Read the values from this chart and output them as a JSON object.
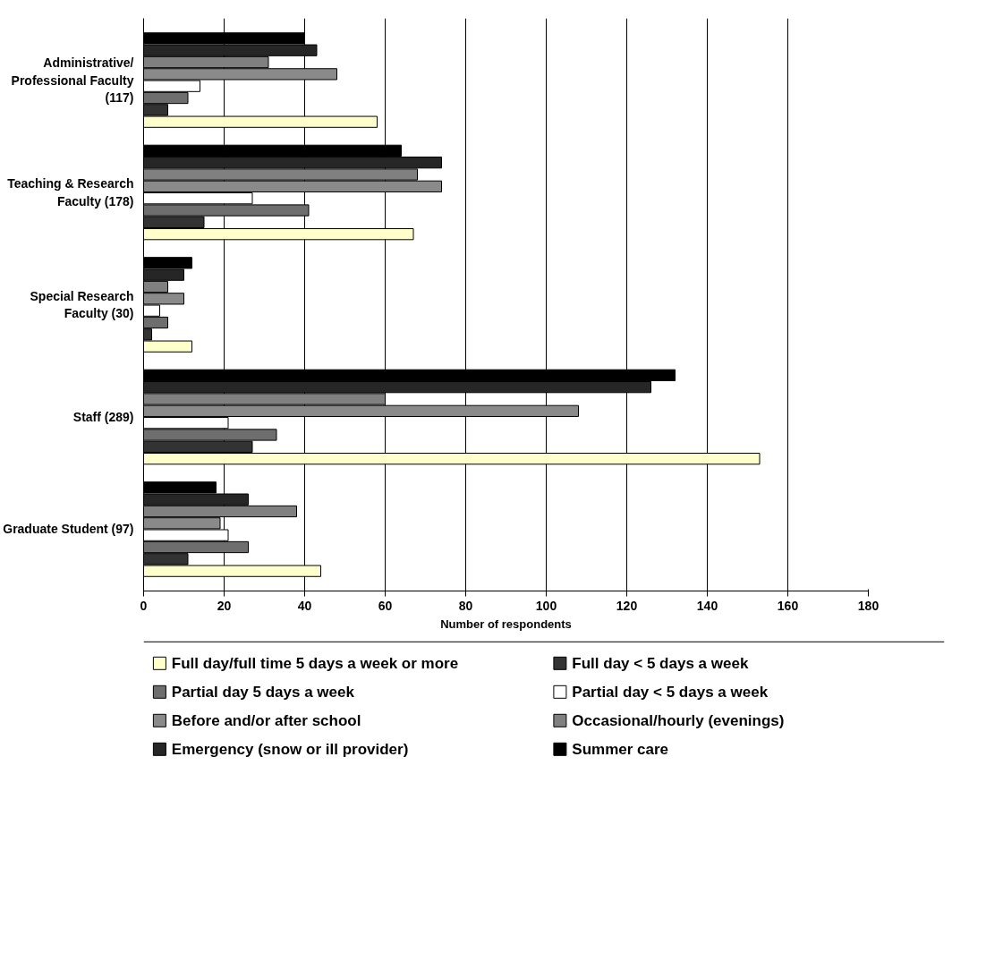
{
  "chart_data": {
    "type": "bar",
    "orientation": "horizontal",
    "xlabel": "Number of respondents",
    "categories": [
      "Administrative/ Professional Faculty (117)",
      "Teaching & Research Faculty (178)",
      "Special Research Faculty (30)",
      "Staff (289)",
      "Graduate Student (97)"
    ],
    "xlim": [
      0,
      180
    ],
    "xticks": [
      0,
      20,
      40,
      60,
      80,
      100,
      120,
      140,
      160,
      180
    ],
    "grid": "x",
    "legend": "bottom",
    "series": [
      {
        "name": "Full day/full time 5 days a week or more",
        "color": "#ffffcc",
        "values": [
          58,
          67,
          12,
          153,
          44
        ]
      },
      {
        "name": "Full day < 5 days a week",
        "color": "#333333",
        "values": [
          6,
          15,
          2,
          27,
          11
        ]
      },
      {
        "name": "Partial day 5 days a week",
        "color": "#6e6e6e",
        "values": [
          11,
          41,
          6,
          33,
          26
        ]
      },
      {
        "name": "Partial day < 5 days a week",
        "color": "#ffffff",
        "values": [
          14,
          27,
          4,
          21,
          21
        ]
      },
      {
        "name": "Before and/or after school",
        "color": "#8a8a8a",
        "values": [
          48,
          74,
          10,
          108,
          19
        ]
      },
      {
        "name": "Occasional/hourly (evenings)",
        "color": "#808080",
        "values": [
          31,
          68,
          6,
          60,
          38
        ]
      },
      {
        "name": "Emergency (snow or ill provider)",
        "color": "#262626",
        "values": [
          43,
          74,
          10,
          126,
          26
        ]
      },
      {
        "name": "Summer care",
        "color": "#000000",
        "values": [
          40,
          64,
          12,
          132,
          18
        ]
      }
    ]
  }
}
